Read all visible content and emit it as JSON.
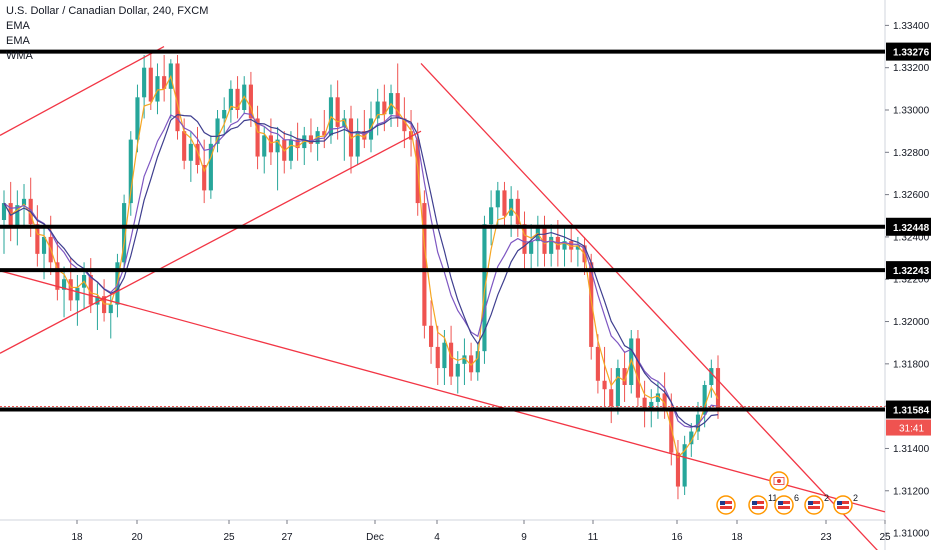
{
  "legend": {
    "symbol": "U.S. Dollar / Canadian Dollar, 240, FXCM",
    "indicators": [
      "EMA",
      "EMA",
      "WMA"
    ]
  },
  "colors": {
    "up": "#26a69a",
    "down": "#ef5350",
    "trendline": "#f23645",
    "ema_fast": "#f5a623",
    "ema_slow": "#7e57c2",
    "wma": "#3f3f8f",
    "level": "#000000",
    "current_price_bg": "#ef5350"
  },
  "chart_data": {
    "type": "candlestick",
    "title": "U.S. Dollar / Canadian Dollar, 240, FXCM",
    "y_axis": {
      "range": [
        1.3092,
        1.3352
      ],
      "ticks": [
        "1.33400",
        "1.33200",
        "1.33000",
        "1.32800",
        "1.32600",
        "1.32400",
        "1.32200",
        "1.32000",
        "1.31800",
        "1.31600",
        "1.31400",
        "1.31200",
        "1.31000"
      ]
    },
    "x_axis": {
      "ticks": [
        "18",
        "20",
        "25",
        "27",
        "Dec",
        "4",
        "9",
        "11",
        "16",
        "18",
        "23",
        "25"
      ]
    },
    "horizontal_levels": [
      {
        "value": 1.33276,
        "label": "1.33276"
      },
      {
        "value": 1.32448,
        "label": "1.32448"
      },
      {
        "value": 1.32243,
        "label": "1.32243"
      },
      {
        "value": 1.31584,
        "label": "1.31584"
      }
    ],
    "current_price": {
      "value": 1.31584,
      "label": "1.31584",
      "countdown": "31:41"
    },
    "ohlc": [
      [
        1.3248,
        1.3262,
        1.3232,
        1.3256
      ],
      [
        1.3256,
        1.3266,
        1.3238,
        1.3245
      ],
      [
        1.3245,
        1.3262,
        1.3236,
        1.3255
      ],
      [
        1.3255,
        1.3265,
        1.3244,
        1.3258
      ],
      [
        1.3258,
        1.3268,
        1.324,
        1.3246
      ],
      [
        1.3246,
        1.3255,
        1.3226,
        1.3232
      ],
      [
        1.3232,
        1.3246,
        1.322,
        1.324
      ],
      [
        1.324,
        1.325,
        1.3222,
        1.3228
      ],
      [
        1.3228,
        1.3238,
        1.321,
        1.3215
      ],
      [
        1.3215,
        1.3226,
        1.3202,
        1.322
      ],
      [
        1.322,
        1.323,
        1.3205,
        1.321
      ],
      [
        1.321,
        1.3222,
        1.3198,
        1.3216
      ],
      [
        1.3216,
        1.3228,
        1.3206,
        1.3222
      ],
      [
        1.3222,
        1.323,
        1.3204,
        1.3208
      ],
      [
        1.3208,
        1.3218,
        1.3196,
        1.3212
      ],
      [
        1.3212,
        1.322,
        1.32,
        1.3204
      ],
      [
        1.3204,
        1.3214,
        1.3192,
        1.3208
      ],
      [
        1.3208,
        1.3232,
        1.3202,
        1.3228
      ],
      [
        1.3228,
        1.326,
        1.3224,
        1.3256
      ],
      [
        1.3256,
        1.329,
        1.325,
        1.3286
      ],
      [
        1.3286,
        1.3312,
        1.328,
        1.3306
      ],
      [
        1.3306,
        1.3326,
        1.3296,
        1.332
      ],
      [
        1.332,
        1.3328,
        1.33,
        1.3304
      ],
      [
        1.3304,
        1.3322,
        1.3298,
        1.3316
      ],
      [
        1.3316,
        1.3326,
        1.3304,
        1.331
      ],
      [
        1.331,
        1.3324,
        1.3296,
        1.3322
      ],
      [
        1.3322,
        1.3326,
        1.3286,
        1.329
      ],
      [
        1.329,
        1.3296,
        1.3272,
        1.3276
      ],
      [
        1.3276,
        1.329,
        1.3266,
        1.3284
      ],
      [
        1.3284,
        1.3292,
        1.327,
        1.3274
      ],
      [
        1.3274,
        1.3286,
        1.3256,
        1.3262
      ],
      [
        1.3262,
        1.3288,
        1.3258,
        1.3284
      ],
      [
        1.3284,
        1.33,
        1.328,
        1.3296
      ],
      [
        1.3296,
        1.3306,
        1.3288,
        1.33
      ],
      [
        1.33,
        1.3314,
        1.3294,
        1.331
      ],
      [
        1.331,
        1.3316,
        1.3296,
        1.33
      ],
      [
        1.33,
        1.3316,
        1.3298,
        1.3312
      ],
      [
        1.3312,
        1.3318,
        1.3292,
        1.3296
      ],
      [
        1.3296,
        1.3302,
        1.3272,
        1.3278
      ],
      [
        1.3278,
        1.3292,
        1.327,
        1.3288
      ],
      [
        1.3288,
        1.3296,
        1.3274,
        1.328
      ],
      [
        1.328,
        1.3292,
        1.3262,
        1.3286
      ],
      [
        1.3286,
        1.329,
        1.327,
        1.3276
      ],
      [
        1.3276,
        1.329,
        1.3272,
        1.3286
      ],
      [
        1.3286,
        1.3294,
        1.3276,
        1.3282
      ],
      [
        1.3282,
        1.3292,
        1.3274,
        1.3288
      ],
      [
        1.3288,
        1.3296,
        1.328,
        1.3284
      ],
      [
        1.3284,
        1.3292,
        1.3276,
        1.329
      ],
      [
        1.329,
        1.33,
        1.3282,
        1.3288
      ],
      [
        1.3288,
        1.3312,
        1.3284,
        1.3306
      ],
      [
        1.3306,
        1.3314,
        1.3286,
        1.3292
      ],
      [
        1.3292,
        1.33,
        1.3276,
        1.3296
      ],
      [
        1.3296,
        1.3302,
        1.327,
        1.3278
      ],
      [
        1.3278,
        1.3296,
        1.3274,
        1.329
      ],
      [
        1.329,
        1.33,
        1.3282,
        1.3286
      ],
      [
        1.3286,
        1.3304,
        1.328,
        1.3296
      ],
      [
        1.3296,
        1.331,
        1.3288,
        1.3304
      ],
      [
        1.3304,
        1.3312,
        1.329,
        1.3298
      ],
      [
        1.3298,
        1.3312,
        1.3292,
        1.3308
      ],
      [
        1.3308,
        1.3322,
        1.3292,
        1.3296
      ],
      [
        1.3296,
        1.3306,
        1.3282,
        1.329
      ],
      [
        1.329,
        1.33,
        1.3278,
        1.3286
      ],
      [
        1.3286,
        1.3294,
        1.325,
        1.3256
      ],
      [
        1.3256,
        1.3262,
        1.3192,
        1.3198
      ],
      [
        1.3198,
        1.321,
        1.318,
        1.3188
      ],
      [
        1.3188,
        1.3198,
        1.317,
        1.3178
      ],
      [
        1.3178,
        1.3196,
        1.317,
        1.319
      ],
      [
        1.319,
        1.3198,
        1.317,
        1.3174
      ],
      [
        1.3174,
        1.3186,
        1.3166,
        1.318
      ],
      [
        1.318,
        1.3192,
        1.317,
        1.3184
      ],
      [
        1.3184,
        1.319,
        1.3172,
        1.3176
      ],
      [
        1.3176,
        1.319,
        1.3172,
        1.3186
      ],
      [
        1.3186,
        1.325,
        1.318,
        1.3246
      ],
      [
        1.3246,
        1.3262,
        1.3236,
        1.3254
      ],
      [
        1.3254,
        1.3266,
        1.3244,
        1.3262
      ],
      [
        1.3262,
        1.3266,
        1.3244,
        1.325
      ],
      [
        1.325,
        1.3264,
        1.324,
        1.3258
      ],
      [
        1.3258,
        1.3262,
        1.324,
        1.3246
      ],
      [
        1.3246,
        1.3252,
        1.3224,
        1.3232
      ],
      [
        1.3232,
        1.3246,
        1.3224,
        1.3238
      ],
      [
        1.3238,
        1.325,
        1.3226,
        1.3244
      ],
      [
        1.3244,
        1.325,
        1.3226,
        1.3232
      ],
      [
        1.3232,
        1.3246,
        1.3226,
        1.324
      ],
      [
        1.324,
        1.3248,
        1.3226,
        1.3234
      ],
      [
        1.3234,
        1.3244,
        1.3226,
        1.3238
      ],
      [
        1.3238,
        1.3244,
        1.3228,
        1.3234
      ],
      [
        1.3234,
        1.324,
        1.3226,
        1.3236
      ],
      [
        1.3236,
        1.324,
        1.3222,
        1.3228
      ],
      [
        1.3228,
        1.3232,
        1.3182,
        1.3188
      ],
      [
        1.3188,
        1.3194,
        1.3166,
        1.3172
      ],
      [
        1.3172,
        1.3188,
        1.316,
        1.3168
      ],
      [
        1.3168,
        1.3178,
        1.3152,
        1.316
      ],
      [
        1.316,
        1.3182,
        1.3156,
        1.3178
      ],
      [
        1.3178,
        1.3186,
        1.3162,
        1.317
      ],
      [
        1.317,
        1.3196,
        1.3166,
        1.3192
      ],
      [
        1.3192,
        1.3196,
        1.316,
        1.3164
      ],
      [
        1.3164,
        1.3172,
        1.315,
        1.3158
      ],
      [
        1.3158,
        1.3168,
        1.315,
        1.3162
      ],
      [
        1.3162,
        1.3172,
        1.3154,
        1.3166
      ],
      [
        1.3166,
        1.3176,
        1.3154,
        1.3158
      ],
      [
        1.3158,
        1.3166,
        1.3132,
        1.3138
      ],
      [
        1.3138,
        1.3144,
        1.3116,
        1.3122
      ],
      [
        1.3122,
        1.3146,
        1.3118,
        1.3142
      ],
      [
        1.3142,
        1.3152,
        1.3136,
        1.3148
      ],
      [
        1.3148,
        1.3162,
        1.3144,
        1.3156
      ],
      [
        1.3156,
        1.3172,
        1.315,
        1.317
      ],
      [
        1.317,
        1.3182,
        1.3164,
        1.3178
      ],
      [
        1.3178,
        1.3184,
        1.3154,
        1.3158
      ]
    ],
    "trendlines": [
      {
        "points": [
          [
            "2019-11-12",
            1.3288
          ],
          [
            "2019-11-22",
            1.333
          ]
        ]
      },
      {
        "points": [
          [
            "2019-11-12",
            1.3185
          ],
          [
            "2019-12-03",
            1.329
          ]
        ]
      },
      {
        "points": [
          [
            "2019-11-12",
            1.3224
          ],
          [
            "2019-12-24",
            1.311
          ]
        ]
      },
      {
        "points": [
          [
            "2019-12-03",
            1.3322
          ],
          [
            "2019-12-24",
            1.3088
          ]
        ]
      }
    ],
    "event_markers": [
      {
        "flag": "ca",
        "count": ""
      },
      {
        "flag": "us",
        "count": ""
      },
      {
        "flag": "us",
        "count": "11"
      },
      {
        "flag": "us",
        "count": "6"
      },
      {
        "flag": "us",
        "count": "2"
      },
      {
        "flag": "us",
        "count": "2"
      }
    ]
  }
}
